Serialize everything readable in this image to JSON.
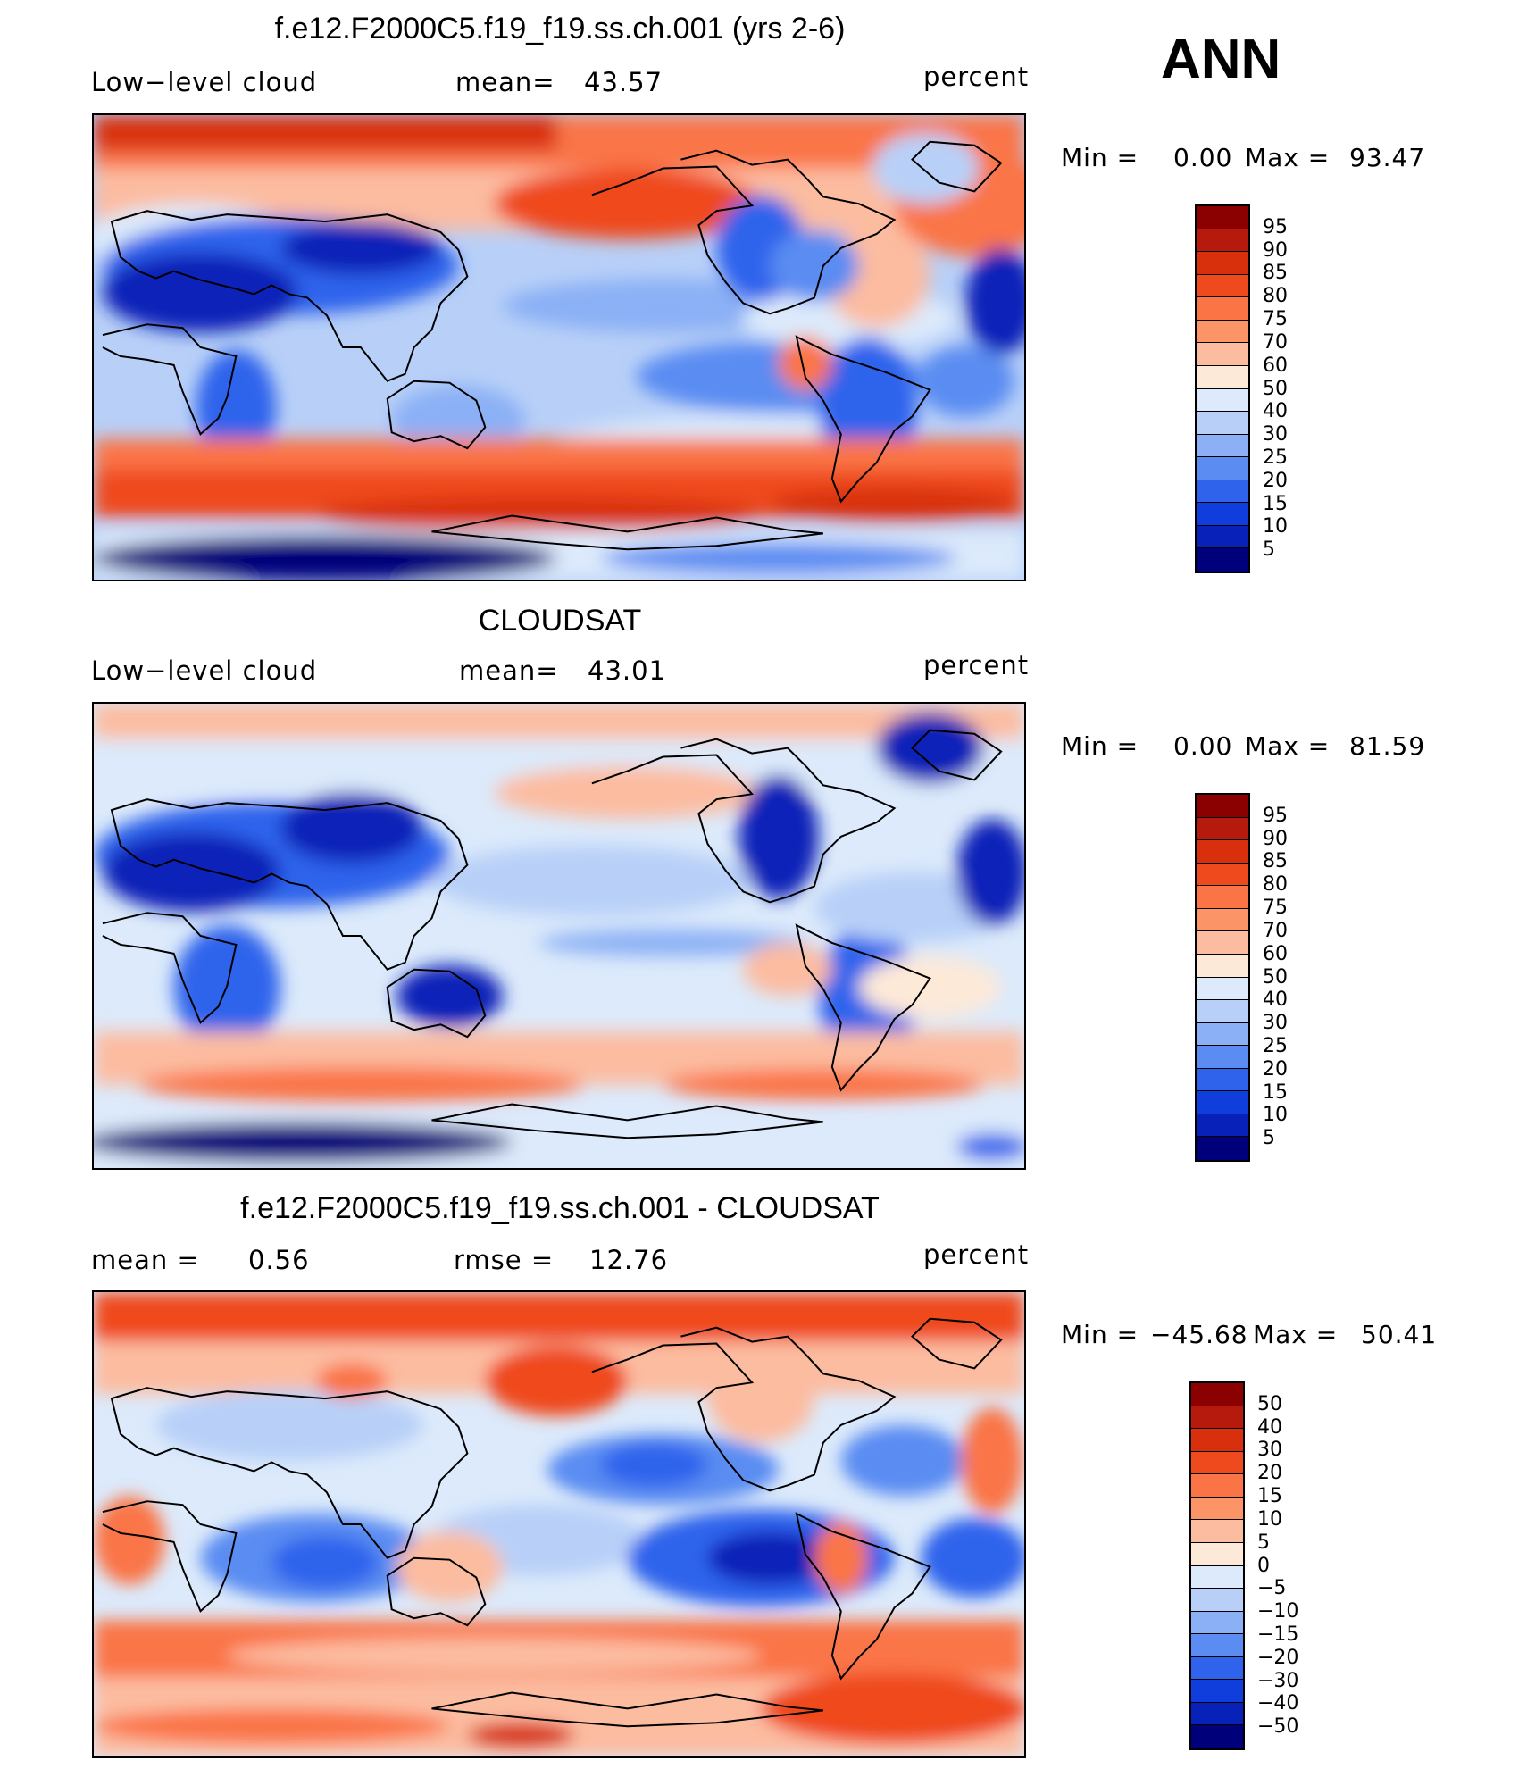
{
  "season": "ANN",
  "panels": [
    {
      "title": "f.e12.F2000C5.f19_f19.ss.ch.001 (yrs 2-6)",
      "left_label": "Low−level cloud",
      "mid_label": "mean=",
      "mid_value": "43.57",
      "units": "percent",
      "min_label": "Min =",
      "min_value": "0.00",
      "max_label": "Max =",
      "max_value": "93.47",
      "colorbar_labels": [
        "95",
        "90",
        "85",
        "80",
        "75",
        "70",
        "60",
        "50",
        "40",
        "30",
        "25",
        "20",
        "15",
        "10",
        "5"
      ]
    },
    {
      "title": "CLOUDSAT",
      "left_label": "Low−level cloud",
      "mid_label": "mean=",
      "mid_value": "43.01",
      "units": "percent",
      "min_label": "Min =",
      "min_value": "0.00",
      "max_label": "Max =",
      "max_value": "81.59",
      "colorbar_labels": [
        "95",
        "90",
        "85",
        "80",
        "75",
        "70",
        "60",
        "50",
        "40",
        "30",
        "25",
        "20",
        "15",
        "10",
        "5"
      ]
    },
    {
      "title": "f.e12.F2000C5.f19_f19.ss.ch.001 - CLOUDSAT",
      "left_label": "mean =",
      "left_value": "0.56",
      "mid_label": "rmse =",
      "mid_value": "12.76",
      "units": "percent",
      "min_label": "Min =",
      "min_value": "−45.68",
      "max_label": "Max =",
      "max_value": "50.41",
      "colorbar_labels": [
        "50",
        "40",
        "30",
        "20",
        "15",
        "10",
        "5",
        "0",
        "−5",
        "−10",
        "−15",
        "−20",
        "−30",
        "−40",
        "−50"
      ]
    }
  ],
  "colors": {
    "palette": [
      "#8b0000",
      "#b61a0c",
      "#d8300c",
      "#ef4a1e",
      "#fa7446",
      "#fb9466",
      "#fcbca0",
      "#fde9d8",
      "#dceafb",
      "#b8d0f8",
      "#8bb0f5",
      "#5a8cf2",
      "#2f63ec",
      "#0f3edc",
      "#0821b8",
      "#00007a"
    ],
    "land_outline": "#000000"
  }
}
